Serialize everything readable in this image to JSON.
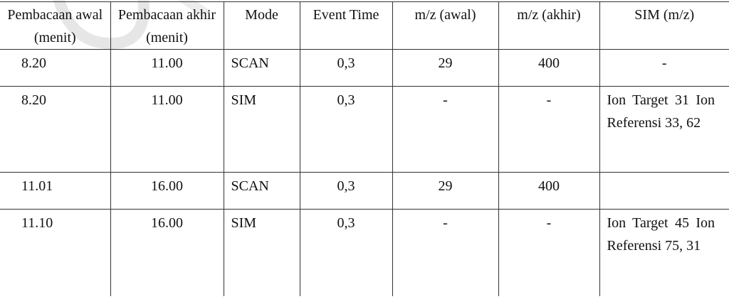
{
  "table": {
    "headers": [
      "Pembacaan awal (menit)",
      "Pembacaan akhir (menit)",
      "Mode",
      "Event Time",
      "m/z (awal)",
      "m/z (akhir)",
      "SIM (m/z)"
    ],
    "rows": [
      [
        "8.20",
        "11.00",
        "SCAN",
        "0,3",
        "29",
        "400",
        "-"
      ],
      [
        "8.20",
        "11.00",
        "SIM",
        "0,3",
        "-",
        "-",
        "Ion Target 31 Ion Referensi 33, 62"
      ],
      [
        "11.01",
        "16.00",
        "SCAN",
        "0,3",
        "29",
        "400",
        ""
      ],
      [
        "11.10",
        "16.00",
        "SIM",
        "0,3",
        "-",
        "-",
        "Ion Target 45 Ion Referensi 75, 31"
      ]
    ]
  }
}
